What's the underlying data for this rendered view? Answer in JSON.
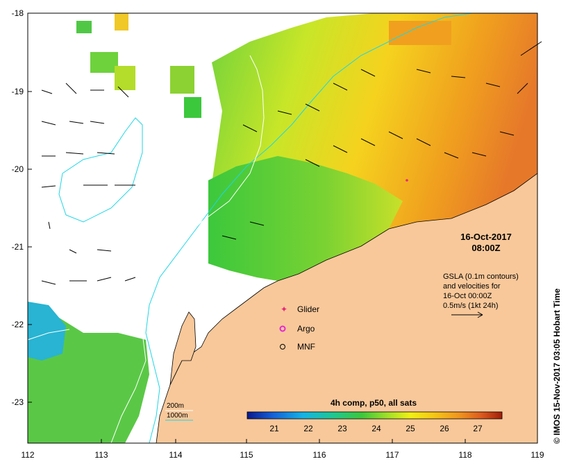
{
  "map": {
    "lon_ticks": [
      "112",
      "113",
      "114",
      "115",
      "116",
      "117",
      "118",
      "119"
    ],
    "lat_ticks": [
      "-18",
      "-19",
      "-20",
      "-21",
      "-22",
      "-23"
    ],
    "date_line1": "16-Oct-2017",
    "date_line2": "08:00Z",
    "gsla_lines": [
      "GSLA (0.1m contours)",
      "and velocities for",
      "16-Oct 00:00Z",
      "0.5m/s (1kt 24h)"
    ],
    "legend": {
      "glider": "Glider",
      "argo": "Argo",
      "mnf": "MNF"
    },
    "isobaths": {
      "contour_200": "200m",
      "contour_1000": "1000m"
    },
    "colorbar": {
      "title": "4h comp, p50, all sats",
      "ticks": [
        "21",
        "22",
        "23",
        "24",
        "25",
        "26",
        "27"
      ],
      "colors": [
        "#0a1a8c",
        "#1460d8",
        "#14b4e6",
        "#1ec890",
        "#3cc83c",
        "#a0e028",
        "#f0f014",
        "#f5c814",
        "#f0961e",
        "#dc5a1e",
        "#a01e0a"
      ]
    },
    "copyright": "© IMOS 15-Nov-2017 03:05 Hobart Time",
    "colors": {
      "land": "#f8c89a",
      "contour_line": "#1ed6e6",
      "glider_marker": "#e6287a",
      "argo_marker": "#e628d2"
    }
  }
}
